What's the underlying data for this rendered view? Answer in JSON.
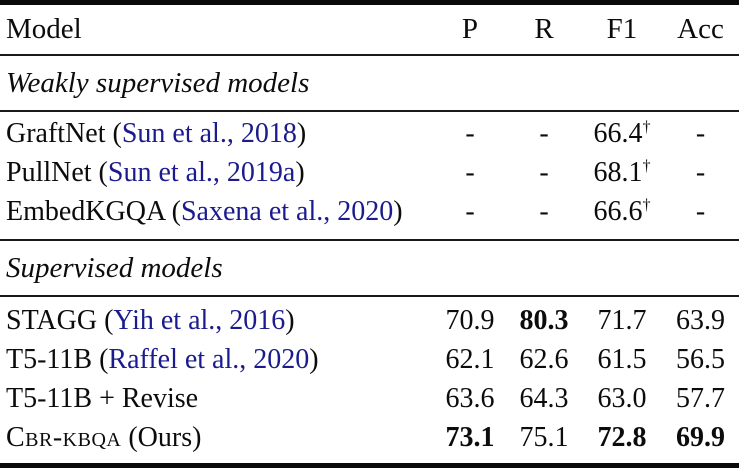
{
  "table": {
    "header": {
      "model": "Model",
      "p": "P",
      "r": "R",
      "f1": "F1",
      "acc": "Acc"
    },
    "sections": {
      "weakly": "Weakly supervised models",
      "supervised": "Supervised models"
    },
    "rows": [
      {
        "pre": "GraftNet (",
        "cite": "Sun et al., 2018",
        "post": ")",
        "p": "-",
        "r": "-",
        "f1": "66.4",
        "f1_sup": "†",
        "acc": "-"
      },
      {
        "pre": "PullNet (",
        "cite": "Sun et al., 2019a",
        "post": ")",
        "p": "-",
        "r": "-",
        "f1": "68.1",
        "f1_sup": "†",
        "acc": "-"
      },
      {
        "pre": "EmbedKGQA (",
        "cite": "Saxena et al., 2020",
        "post": ")",
        "p": "-",
        "r": "-",
        "f1": "66.6",
        "f1_sup": "†",
        "acc": "-"
      },
      {
        "pre": "STAGG (",
        "cite": "Yih et al., 2016",
        "post": ")",
        "p": "70.9",
        "r": "80.3",
        "f1": "71.7",
        "f1_sup": "",
        "acc": "63.9"
      },
      {
        "pre": "T5-11B (",
        "cite": "Raffel et al., 2020",
        "post": ")",
        "p": "62.1",
        "r": "62.6",
        "f1": "61.5",
        "f1_sup": "",
        "acc": "56.5"
      },
      {
        "pre": "T5-11B + Revise",
        "cite": "",
        "post": "",
        "p": "63.6",
        "r": "64.3",
        "f1": "63.0",
        "f1_sup": "",
        "acc": "57.7"
      },
      {
        "pre": "Cbr-kbqa",
        "cite": "",
        "post": " (Ours)",
        "p": "73.1",
        "r": "75.1",
        "f1": "72.8",
        "f1_sup": "",
        "acc": "69.9"
      }
    ],
    "colors": {
      "citation_link": "#1b1b8e",
      "text": "#0c0c0c",
      "rule": "#000000"
    }
  }
}
